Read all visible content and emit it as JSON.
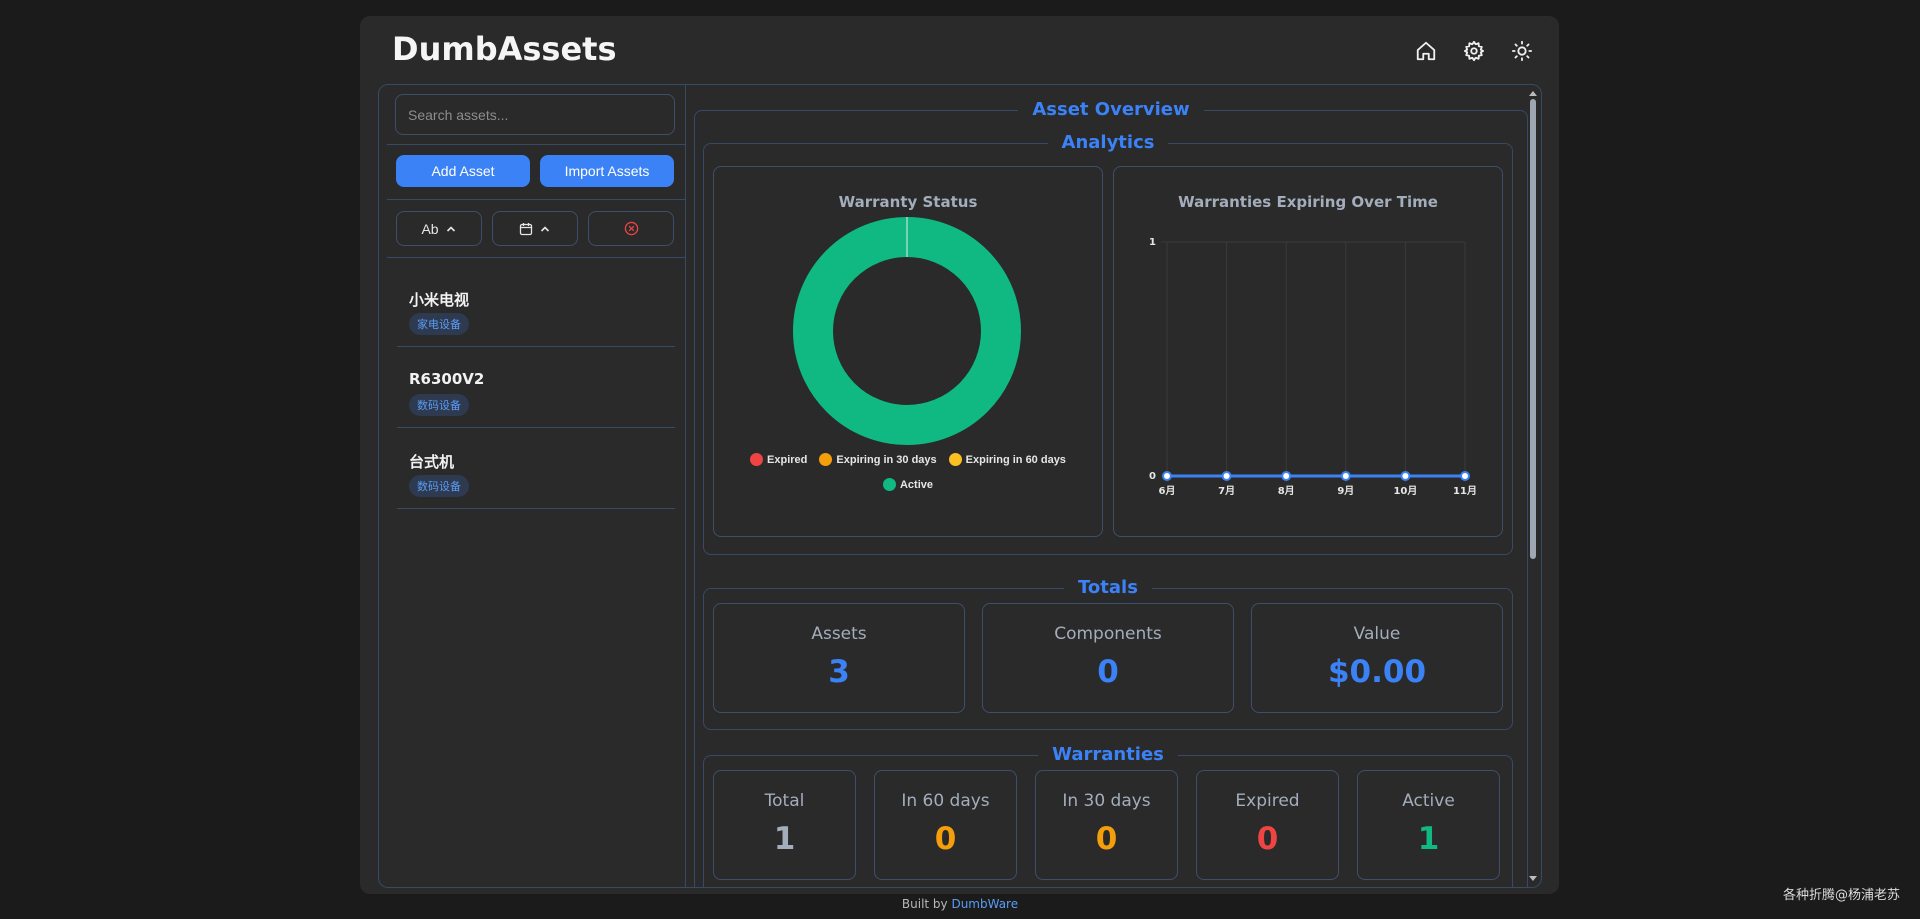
{
  "app": {
    "title": "DumbAssets"
  },
  "header_icons": [
    "home-icon",
    "gear-icon",
    "sun-icon"
  ],
  "sidebar": {
    "search_placeholder": "Search assets...",
    "add_label": "Add Asset",
    "import_label": "Import Assets",
    "sort_name_label": "Ab",
    "assets": [
      {
        "name": "小米电视",
        "tag": "家电设备"
      },
      {
        "name": "R6300V2",
        "tag": "数码设备"
      },
      {
        "name": "台式机",
        "tag": "数码设备"
      }
    ]
  },
  "overview": {
    "title": "Asset Overview"
  },
  "analytics": {
    "title": "Analytics"
  },
  "chart_data": [
    {
      "type": "pie",
      "title": "Warranty Status",
      "labels": [
        "Expired",
        "Expiring in 30 days",
        "Expiring in 60 days",
        "Active"
      ],
      "values": [
        0,
        0,
        0,
        1
      ],
      "colors": [
        "#ef4444",
        "#f59e0b",
        "#fbbf24",
        "#10b981"
      ],
      "legend": "bottom"
    },
    {
      "type": "line",
      "title": "Warranties Expiring Over Time",
      "categories": [
        "6月",
        "7月",
        "8月",
        "9月",
        "10月",
        "11月"
      ],
      "series": [
        {
          "values": [
            0,
            0,
            0,
            0,
            0,
            0
          ]
        }
      ],
      "ylim": [
        0,
        1
      ],
      "yticks": [
        "0",
        "1"
      ],
      "grid": true,
      "color": "#3b82f6"
    }
  ],
  "totals": {
    "title": "Totals",
    "items": [
      {
        "label": "Assets",
        "value": "3"
      },
      {
        "label": "Components",
        "value": "0"
      },
      {
        "label": "Value",
        "value": "$0.00"
      }
    ]
  },
  "warranties": {
    "title": "Warranties",
    "items": [
      {
        "label": "Total",
        "value": "1",
        "color": "#a3adbb"
      },
      {
        "label": "In 60 days",
        "value": "0",
        "color": "#f59e0b"
      },
      {
        "label": "In 30 days",
        "value": "0",
        "color": "#f59e0b"
      },
      {
        "label": "Expired",
        "value": "0",
        "color": "#ef4444"
      },
      {
        "label": "Active",
        "value": "1",
        "color": "#10b981"
      }
    ]
  },
  "footer": {
    "prefix": "Built by ",
    "link": "DumbWare"
  },
  "watermark": "各种折腾@杨浦老苏",
  "colors": {
    "accent": "#3b82f6",
    "border": "#374a66",
    "active": "#10b981",
    "warning": "#f59e0b",
    "expired": "#ef4444"
  }
}
